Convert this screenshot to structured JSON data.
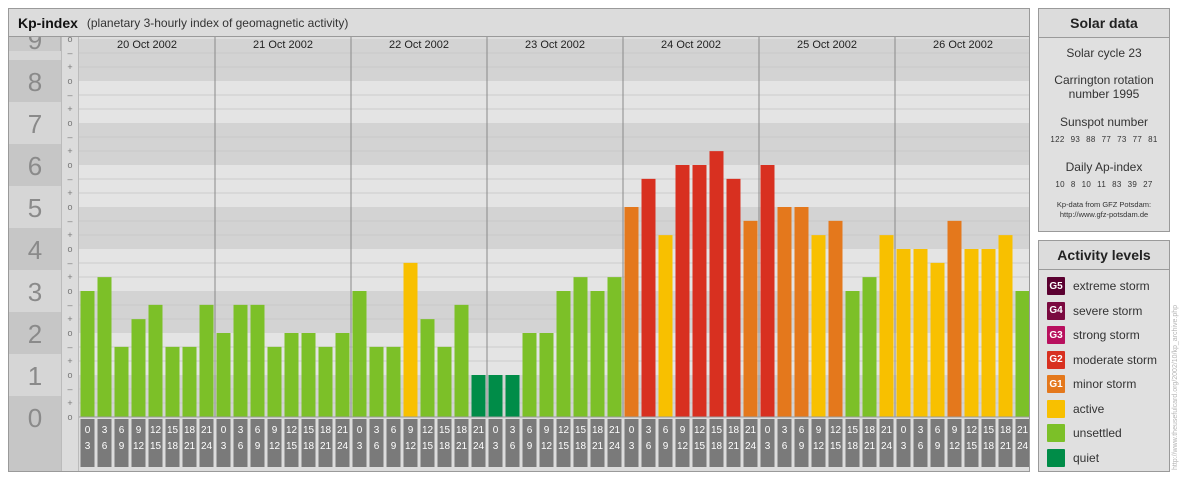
{
  "header": {
    "title": "Kp-index",
    "subtitle": "(planetary 3-hourly index of geomagnetic activity)"
  },
  "chart_data": {
    "type": "bar",
    "title": "Kp-index",
    "subtitle": "(planetary 3-hourly index of geomagnetic activity)",
    "ylim": [
      0,
      9
    ],
    "y_major_ticks": [
      "0",
      "1",
      "2",
      "3",
      "4",
      "5",
      "6",
      "7",
      "8",
      "9"
    ],
    "y_minor_ticks": [
      "o",
      "+",
      "–",
      "o"
    ],
    "days": [
      "20 Oct 2002",
      "21 Oct 2002",
      "22 Oct 2002",
      "23 Oct 2002",
      "24 Oct 2002",
      "25 Oct 2002",
      "26 Oct 2002"
    ],
    "interval_start_hours": [
      "0",
      "3",
      "6",
      "9",
      "12",
      "15",
      "18",
      "21"
    ],
    "interval_end_hours": [
      "3",
      "6",
      "9",
      "12",
      "15",
      "18",
      "21",
      "24"
    ],
    "values": [
      [
        3.0,
        3.33,
        1.67,
        2.33,
        2.67,
        1.67,
        1.67,
        2.67
      ],
      [
        2.0,
        2.67,
        2.67,
        1.67,
        2.0,
        2.0,
        1.67,
        2.0
      ],
      [
        3.0,
        1.67,
        1.67,
        3.67,
        2.33,
        1.67,
        2.67,
        1.0
      ],
      [
        1.0,
        1.0,
        2.0,
        2.0,
        3.0,
        3.33,
        3.0,
        3.33
      ],
      [
        5.0,
        5.67,
        4.33,
        6.0,
        6.0,
        6.33,
        5.67,
        4.67
      ],
      [
        6.0,
        5.0,
        5.0,
        4.33,
        4.67,
        3.0,
        3.33,
        4.33
      ],
      [
        4.0,
        4.0,
        3.67,
        4.67,
        4.0,
        4.0,
        4.33,
        3.0
      ]
    ],
    "grid": true
  },
  "solar": {
    "title": "Solar data",
    "cycle": "Solar cycle 23",
    "carrington_line1": "Carrington rotation",
    "carrington_line2": "number 1995",
    "sunspot_label": "Sunspot number",
    "sunspot_values": [
      "122",
      "93",
      "88",
      "77",
      "73",
      "77",
      "81"
    ],
    "ap_label": "Daily Ap-index",
    "ap_values": [
      "10",
      "8",
      "10",
      "11",
      "83",
      "39",
      "27"
    ],
    "source_line1": "Kp-data from GFZ Potsdam:",
    "source_line2": "http://www.gfz-potsdam.de"
  },
  "activity": {
    "title": "Activity levels",
    "levels": [
      {
        "code": "G5",
        "label": "extreme storm",
        "color": "#5a0030"
      },
      {
        "code": "G4",
        "label": "severe storm",
        "color": "#7a0a40"
      },
      {
        "code": "G3",
        "label": "strong storm",
        "color": "#b8105e"
      },
      {
        "code": "G2",
        "label": "moderate storm",
        "color": "#d83020"
      },
      {
        "code": "G1",
        "label": "minor storm",
        "color": "#e4781c"
      },
      {
        "code": "",
        "label": "active",
        "color": "#f8c000"
      },
      {
        "code": "",
        "label": "unsettled",
        "color": "#7cc028"
      },
      {
        "code": "",
        "label": "quiet",
        "color": "#008c48"
      }
    ]
  },
  "watermark": "http://www.theusefulcard.org/2002/10/kp_archive.php"
}
